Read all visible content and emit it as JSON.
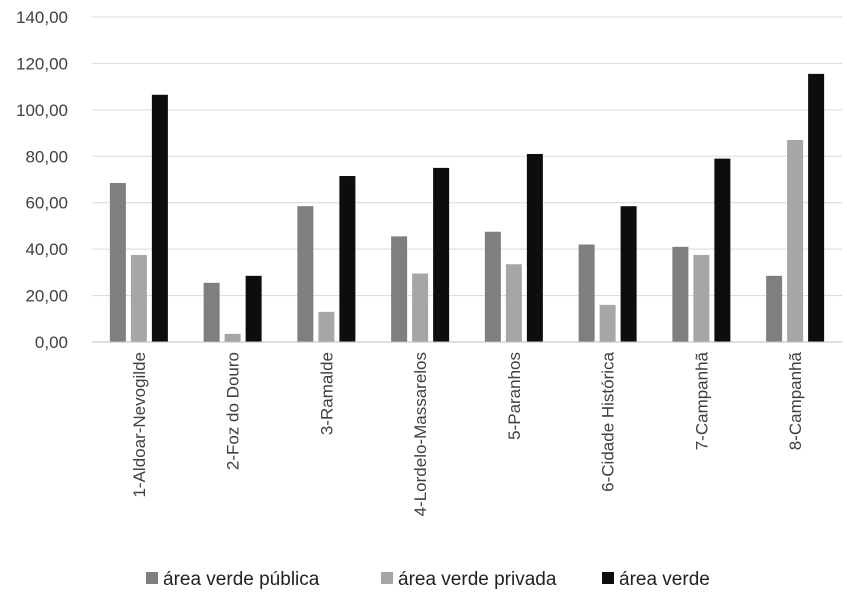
{
  "chart_data": {
    "type": "bar",
    "title": "",
    "xlabel": "",
    "ylabel": "",
    "ylim": [
      0,
      140
    ],
    "yticks": [
      "0,00",
      "20,00",
      "40,00",
      "60,00",
      "80,00",
      "100,00",
      "120,00",
      "140,00"
    ],
    "ytick_values": [
      0,
      20,
      40,
      60,
      80,
      100,
      120,
      140
    ],
    "grid": true,
    "legend_position": "bottom",
    "categories": [
      "1-Aldoar-Nevogilde",
      "2-Foz do Douro",
      "3-Ramalde",
      "4-Lordelo-Massarelos",
      "5-Paranhos",
      "6-Cidade Histórica",
      "7-Campanhã",
      "8-Campanhã"
    ],
    "series": [
      {
        "name": "área verde pública",
        "color": "#7f7f7f",
        "values": [
          68.5,
          25.5,
          58.5,
          45.5,
          47.5,
          42.0,
          41.0,
          28.5
        ]
      },
      {
        "name": "área verde privada",
        "color": "#a6a6a6",
        "values": [
          37.5,
          3.5,
          13.0,
          29.5,
          33.5,
          16.0,
          37.5,
          87.0
        ]
      },
      {
        "name": "área verde",
        "color": "#0d0d0d",
        "values": [
          106.5,
          28.5,
          71.5,
          75.0,
          81.0,
          58.5,
          79.0,
          115.5
        ]
      }
    ]
  }
}
